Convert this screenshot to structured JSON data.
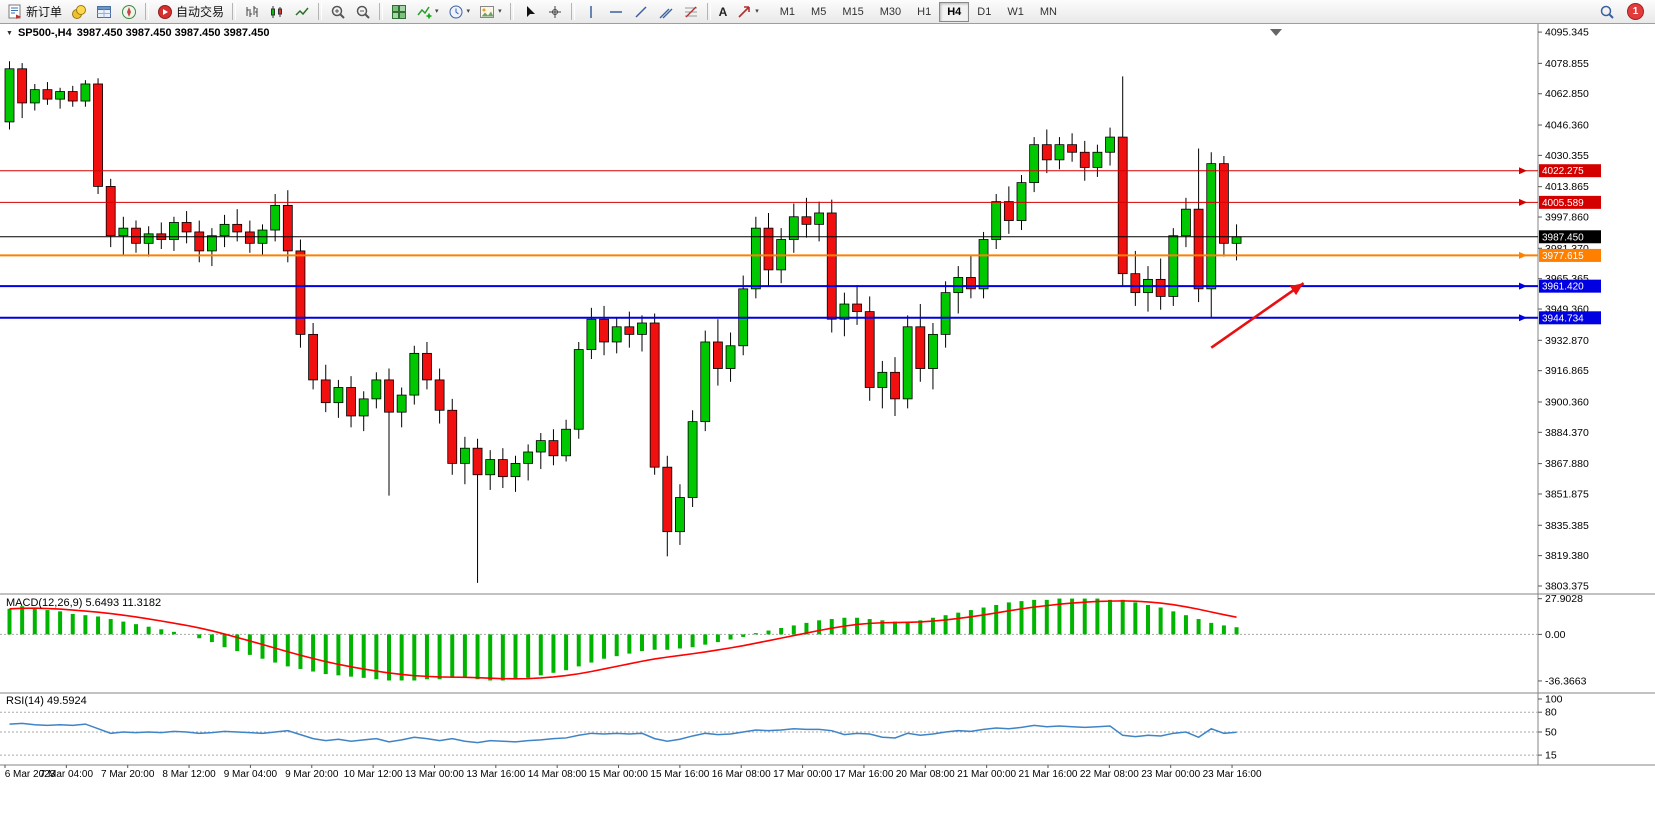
{
  "toolbar": {
    "new_order_label": "新订单",
    "auto_trading_label": "自动交易",
    "timeframes": [
      "M1",
      "M5",
      "M15",
      "M30",
      "H1",
      "H4",
      "D1",
      "W1",
      "MN"
    ],
    "active_timeframe": "H4",
    "notification_count": "1"
  },
  "icons": {
    "dropdown_caret": "▾",
    "collapse_marker": "▼",
    "text_tool": "A"
  },
  "chart": {
    "title": "SP500-,H4",
    "ohlc_text": "3987.450 3987.450 3987.450 3987.450",
    "macd_label": "MACD(12,26,9) 5.6493 11.3182",
    "rsi_label": "RSI(14) 49.5924"
  },
  "chart_data": {
    "type": "candlestick",
    "symbol": "SP500-",
    "timeframe": "H4",
    "price_range": {
      "max": 4097.5,
      "min": 3800.2
    },
    "y_axis_ticks": [
      "4095.345",
      "4078.855",
      "4062.850",
      "4046.360",
      "4030.355",
      "4013.865",
      "3997.860",
      "3981.370",
      "3965.365",
      "3949.360",
      "3932.870",
      "3916.865",
      "3900.360",
      "3884.370",
      "3867.880",
      "3851.875",
      "3835.385",
      "3819.380",
      "3803.375"
    ],
    "x_labels": [
      "6 Mar 2023",
      "7 Mar 04:00",
      "7 Mar 20:00",
      "8 Mar 12:00",
      "9 Mar 04:00",
      "9 Mar 20:00",
      "10 Mar 12:00",
      "13 Mar 00:00",
      "13 Mar 16:00",
      "14 Mar 08:00",
      "15 Mar 00:00",
      "15 Mar 16:00",
      "16 Mar 08:00",
      "17 Mar 00:00",
      "17 Mar 16:00",
      "20 Mar 08:00",
      "21 Mar 00:00",
      "21 Mar 16:00",
      "22 Mar 08:00",
      "23 Mar 00:00",
      "23 Mar 16:00"
    ],
    "colors": {
      "up": "#00c800",
      "down": "#f01010",
      "wick": "#000000",
      "macd_hist": "#00b400",
      "macd_signal": "#ff0000",
      "rsi_line": "#3e84c6"
    },
    "price_levels": [
      {
        "value": 4022.275,
        "label": "4022.275",
        "color": "#d40000",
        "width": 1,
        "marker": true
      },
      {
        "value": 4005.589,
        "label": "4005.589",
        "color": "#d40000",
        "width": 1,
        "marker": true
      },
      {
        "value": 3987.45,
        "label": "3987.450",
        "color": "#000000",
        "width": 1,
        "marker": false,
        "kind": "current-price"
      },
      {
        "value": 3977.615,
        "label": "3977.615",
        "color": "#ff8000",
        "width": 2,
        "marker": true
      },
      {
        "value": 3961.42,
        "label": "3961.420",
        "color": "#0000e0",
        "width": 2,
        "marker": true
      },
      {
        "value": 3944.734,
        "label": "3944.734",
        "color": "#0000e0",
        "width": 2,
        "marker": true
      }
    ],
    "arrow": {
      "from": {
        "bar": 95,
        "price": 3929
      },
      "to": {
        "bar": 102.3,
        "price": 3963
      },
      "color": "#e81010"
    },
    "candles": [
      [
        4048,
        4080,
        4044,
        4076
      ],
      [
        4076,
        4079,
        4050,
        4058
      ],
      [
        4058,
        4068,
        4054,
        4065
      ],
      [
        4065,
        4069,
        4057,
        4060
      ],
      [
        4060,
        4066,
        4055,
        4064
      ],
      [
        4064,
        4067,
        4056,
        4059
      ],
      [
        4059,
        4070,
        4056,
        4068
      ],
      [
        4068,
        4071,
        4010,
        4014
      ],
      [
        4014,
        4018,
        3982,
        3988
      ],
      [
        3988,
        3998,
        3978,
        3992
      ],
      [
        3992,
        3996,
        3979,
        3984
      ],
      [
        3984,
        3993,
        3977,
        3989
      ],
      [
        3989,
        3995,
        3981,
        3986
      ],
      [
        3986,
        3998,
        3980,
        3995
      ],
      [
        3995,
        4001,
        3984,
        3990
      ],
      [
        3990,
        3996,
        3974,
        3980
      ],
      [
        3980,
        3992,
        3972,
        3988
      ],
      [
        3988,
        3999,
        3982,
        3994
      ],
      [
        3994,
        4002,
        3985,
        3990
      ],
      [
        3990,
        3996,
        3979,
        3984
      ],
      [
        3984,
        3994,
        3978,
        3991
      ],
      [
        3991,
        4010,
        3985,
        4004
      ],
      [
        4004,
        4012,
        3974,
        3980
      ],
      [
        3980,
        3986,
        3929,
        3936
      ],
      [
        3936,
        3942,
        3907,
        3912
      ],
      [
        3912,
        3920,
        3895,
        3900
      ],
      [
        3900,
        3912,
        3892,
        3908
      ],
      [
        3908,
        3914,
        3887,
        3893
      ],
      [
        3893,
        3906,
        3885,
        3902
      ],
      [
        3902,
        3916,
        3897,
        3912
      ],
      [
        3912,
        3918,
        3851,
        3895
      ],
      [
        3895,
        3908,
        3887,
        3904
      ],
      [
        3904,
        3930,
        3899,
        3926
      ],
      [
        3926,
        3932,
        3907,
        3912
      ],
      [
        3912,
        3918,
        3889,
        3896
      ],
      [
        3896,
        3902,
        3862,
        3868
      ],
      [
        3868,
        3882,
        3857,
        3876
      ],
      [
        3876,
        3881,
        3805,
        3862
      ],
      [
        3862,
        3875,
        3854,
        3870
      ],
      [
        3870,
        3876,
        3855,
        3861
      ],
      [
        3861,
        3872,
        3853,
        3868
      ],
      [
        3868,
        3878,
        3859,
        3874
      ],
      [
        3874,
        3884,
        3865,
        3880
      ],
      [
        3880,
        3886,
        3867,
        3872
      ],
      [
        3872,
        3891,
        3869,
        3886
      ],
      [
        3886,
        3932,
        3881,
        3928
      ],
      [
        3928,
        3950,
        3923,
        3944
      ],
      [
        3944,
        3951,
        3925,
        3932
      ],
      [
        3932,
        3945,
        3926,
        3940
      ],
      [
        3940,
        3948,
        3929,
        3936
      ],
      [
        3936,
        3946,
        3927,
        3942
      ],
      [
        3942,
        3947,
        3862,
        3866
      ],
      [
        3866,
        3872,
        3819,
        3832
      ],
      [
        3832,
        3857,
        3825,
        3850
      ],
      [
        3850,
        3896,
        3845,
        3890
      ],
      [
        3890,
        3938,
        3885,
        3932
      ],
      [
        3932,
        3944,
        3909,
        3918
      ],
      [
        3918,
        3937,
        3911,
        3930
      ],
      [
        3930,
        3967,
        3925,
        3960
      ],
      [
        3960,
        3998,
        3955,
        3992
      ],
      [
        3992,
        4000,
        3961,
        3970
      ],
      [
        3970,
        3992,
        3963,
        3986
      ],
      [
        3986,
        4005,
        3979,
        3998
      ],
      [
        3998,
        4008,
        3987,
        3994
      ],
      [
        3994,
        4006,
        3985,
        4000
      ],
      [
        4000,
        4007,
        3937,
        3944
      ],
      [
        3944,
        3958,
        3935,
        3952
      ],
      [
        3952,
        3962,
        3941,
        3948
      ],
      [
        3948,
        3956,
        3901,
        3908
      ],
      [
        3908,
        3922,
        3897,
        3916
      ],
      [
        3916,
        3924,
        3893,
        3902
      ],
      [
        3902,
        3946,
        3897,
        3940
      ],
      [
        3940,
        3952,
        3911,
        3918
      ],
      [
        3918,
        3942,
        3907,
        3936
      ],
      [
        3936,
        3964,
        3929,
        3958
      ],
      [
        3958,
        3972,
        3947,
        3966
      ],
      [
        3966,
        3978,
        3955,
        3960
      ],
      [
        3960,
        3990,
        3955,
        3986
      ],
      [
        3986,
        4010,
        3981,
        4006
      ],
      [
        4006,
        4014,
        3989,
        3996
      ],
      [
        3996,
        4020,
        3991,
        4016
      ],
      [
        4016,
        4040,
        4011,
        4036
      ],
      [
        4036,
        4044,
        4021,
        4028
      ],
      [
        4028,
        4040,
        4023,
        4036
      ],
      [
        4036,
        4042,
        4027,
        4032
      ],
      [
        4032,
        4038,
        4017,
        4024
      ],
      [
        4024,
        4036,
        4019,
        4032
      ],
      [
        4032,
        4045,
        4025,
        4040
      ],
      [
        4040,
        4072,
        3961,
        3968
      ],
      [
        3968,
        3980,
        3951,
        3958
      ],
      [
        3958,
        3972,
        3948,
        3965
      ],
      [
        3965,
        3976,
        3949,
        3956
      ],
      [
        3956,
        3992,
        3951,
        3988
      ],
      [
        3988,
        4008,
        3982,
        4002
      ],
      [
        4002,
        4034,
        3953,
        3960
      ],
      [
        3960,
        4032,
        3945,
        4026
      ],
      [
        4026,
        4030,
        3977,
        3984
      ],
      [
        3984,
        3994,
        3975,
        3987.45
      ]
    ],
    "macd": {
      "label": "MACD(12,26,9)",
      "current_main": 5.6493,
      "current_signal": 11.3182,
      "scale_ticks": [
        "27.9028",
        "0.00",
        "-36.3663"
      ],
      "range": {
        "max": 30,
        "min": -45
      },
      "values": [
        20,
        22,
        21,
        19,
        18,
        16,
        15,
        14,
        12,
        10,
        8,
        6,
        4,
        2,
        0,
        -3,
        -6,
        -10,
        -13,
        -16,
        -19,
        -22,
        -25,
        -27,
        -29,
        -31,
        -32,
        -33,
        -34,
        -35,
        -36,
        -36,
        -36,
        -35,
        -35,
        -34,
        -34,
        -35,
        -36,
        -36,
        -35,
        -34,
        -32,
        -30,
        -28,
        -25,
        -22,
        -19,
        -17,
        -15,
        -13,
        -12,
        -12,
        -11,
        -10,
        -8,
        -6,
        -4,
        -2,
        1,
        3,
        5,
        7,
        9,
        11,
        12,
        13,
        13,
        12,
        11,
        10,
        10,
        11,
        13,
        15,
        17,
        19,
        21,
        23,
        25,
        26,
        27,
        27,
        28,
        28,
        28,
        28,
        27,
        27,
        25,
        23,
        21,
        18,
        15,
        12,
        9,
        7,
        5.6
      ]
    },
    "rsi": {
      "label": "RSI(14)",
      "current": 49.5924,
      "scale_ticks": [
        "100",
        "80",
        "50",
        "15"
      ],
      "levels": [
        80,
        50,
        15
      ],
      "range": {
        "max": 100,
        "min": 0
      },
      "values": [
        62,
        63,
        61,
        60,
        61,
        60,
        62,
        55,
        48,
        50,
        49,
        50,
        49,
        51,
        50,
        48,
        49,
        51,
        50,
        49,
        48,
        50,
        52,
        46,
        40,
        37,
        39,
        36,
        38,
        40,
        35,
        38,
        42,
        40,
        37,
        40,
        36,
        34,
        37,
        36,
        35,
        37,
        38,
        40,
        41,
        45,
        48,
        47,
        48,
        47,
        48,
        40,
        36,
        39,
        44,
        48,
        46,
        47,
        50,
        53,
        52,
        53,
        55,
        54,
        54,
        52,
        46,
        48,
        47,
        42,
        41,
        48,
        45,
        47,
        50,
        52,
        51,
        54,
        56,
        55,
        57,
        60,
        58,
        59,
        58,
        57,
        58,
        59,
        45,
        43,
        45,
        44,
        48,
        50,
        42,
        55,
        48,
        49.6
      ]
    }
  }
}
